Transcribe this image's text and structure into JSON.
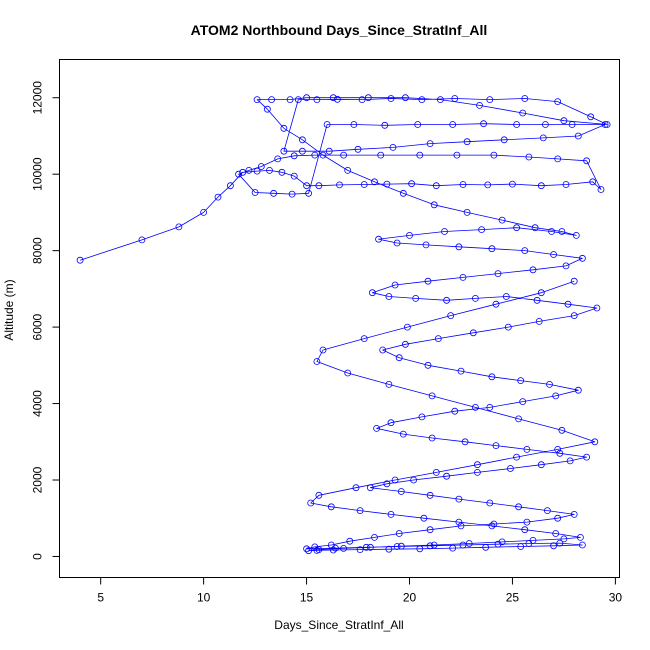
{
  "chart_data": {
    "type": "line",
    "title": "ATOM2 Northbound Days_Since_StratInf_All",
    "xlabel": "Days_Since_StratInf_All",
    "ylabel": "Altitude (m)",
    "xlim": [
      3,
      30.2
    ],
    "ylim": [
      -550,
      13000
    ],
    "xticks": [
      5,
      10,
      15,
      20,
      25,
      30
    ],
    "yticks": [
      0,
      2000,
      4000,
      6000,
      8000,
      10000,
      12000
    ],
    "grid": false,
    "marker": "open-circle",
    "color": "#0000ff",
    "series": [
      {
        "x": [
          4.0,
          7.0,
          8.8,
          10.0,
          10.7,
          11.3,
          11.9,
          12.6,
          13.2,
          13.8,
          14.4,
          15.0,
          15.6,
          16.6,
          17.8,
          18.9,
          20.1,
          21.3,
          22.6,
          23.8,
          25.0,
          26.4,
          27.6,
          28.9,
          29.3,
          28.6,
          27.2,
          25.8,
          24.1,
          22.3,
          20.5,
          18.6,
          16.8,
          15.4,
          14.4,
          13.6,
          12.8,
          12.2,
          11.7,
          12.5,
          13.4,
          14.3,
          15.1,
          16.0,
          17.3,
          18.8,
          20.4,
          22.1,
          23.6,
          25.2,
          26.6,
          27.9,
          29.5,
          28.2,
          26.5,
          24.6,
          22.8,
          21.0,
          19.2,
          17.5,
          16.1,
          14.8,
          13.9,
          14.6,
          15.5,
          16.5,
          17.7,
          19.1,
          20.6,
          22.2,
          23.9,
          25.6,
          27.2,
          28.8,
          29.6,
          27.5,
          25.5,
          23.4,
          21.5,
          19.8,
          18.0,
          16.3,
          15.0,
          14.2,
          13.3,
          12.6,
          13.1,
          13.9,
          14.8,
          15.8,
          17.0,
          18.3,
          19.7,
          21.2,
          22.8,
          24.5,
          26.1,
          27.4,
          28.1,
          26.9,
          25.2,
          23.5,
          21.7,
          20.0,
          18.5,
          19.4,
          20.8,
          22.4,
          24.0,
          25.6,
          27.0,
          28.4,
          27.6,
          26.0,
          24.3,
          22.6,
          20.9,
          19.3,
          18.2,
          19.0,
          20.3,
          21.8,
          23.2,
          24.7,
          26.2,
          27.7,
          29.1,
          28.0,
          26.3,
          24.8,
          23.1,
          21.4,
          19.8,
          18.7,
          19.5,
          20.9,
          22.5,
          24.0,
          25.4,
          26.8,
          28.2,
          27.1,
          25.5,
          23.9,
          22.2,
          20.6,
          19.1,
          18.4,
          19.7,
          21.1,
          22.7,
          24.2,
          25.7,
          27.3,
          28.6,
          27.8,
          26.4,
          24.9,
          23.3,
          21.8,
          20.2,
          18.9,
          18.1,
          19.6,
          21.0,
          22.4,
          23.9,
          25.3,
          26.7,
          28.0,
          27.2,
          25.7,
          24.1,
          22.5,
          21.0,
          19.5,
          18.3,
          17.1,
          16.2,
          15.4,
          15.0,
          16.4,
          17.9,
          19.4,
          21.0,
          22.6,
          24.3,
          25.8,
          27.3,
          28.4,
          27.0,
          25.4,
          23.7,
          22.1,
          20.5,
          19.0,
          17.6,
          16.3,
          15.5,
          15.1,
          15.6,
          16.8,
          18.1,
          19.6,
          21.2,
          22.9,
          24.5,
          26.0,
          27.5,
          28.3,
          27.1,
          25.6,
          24.0,
          22.4,
          20.7,
          19.1,
          17.6,
          16.2,
          15.2,
          15.6,
          17.4,
          19.3,
          21.3,
          23.3,
          25.2,
          27.2,
          29.0,
          27.4,
          25.3,
          23.2,
          21.1,
          19.0,
          17.0,
          15.5,
          15.8,
          17.8,
          19.9,
          22.0,
          24.2,
          26.4,
          28.0
        ],
        "y": [
          7750,
          8280,
          8620,
          9000,
          9400,
          9700,
          10050,
          10080,
          10100,
          10050,
          9950,
          9700,
          9700,
          9720,
          9730,
          9740,
          9750,
          9700,
          9730,
          9720,
          9740,
          9700,
          9730,
          9800,
          9600,
          10350,
          10400,
          10450,
          10500,
          10500,
          10500,
          10500,
          10500,
          10500,
          10480,
          10400,
          10200,
          10100,
          10000,
          9520,
          9500,
          9480,
          9500,
          11300,
          11300,
          11280,
          11300,
          11300,
          11320,
          11300,
          11300,
          11300,
          11300,
          11000,
          10950,
          10900,
          10850,
          10800,
          10700,
          10650,
          10600,
          10600,
          10600,
          11950,
          11950,
          11960,
          11950,
          11980,
          11950,
          11980,
          11950,
          11980,
          11900,
          11500,
          11300,
          11400,
          11600,
          11800,
          11950,
          12000,
          12000,
          12000,
          12000,
          11950,
          11950,
          11950,
          11700,
          11200,
          10900,
          10500,
          10100,
          9800,
          9500,
          9200,
          9000,
          8800,
          8600,
          8500,
          8400,
          8500,
          8600,
          8550,
          8500,
          8400,
          8300,
          8200,
          8150,
          8100,
          8050,
          8000,
          7900,
          7800,
          7600,
          7500,
          7400,
          7300,
          7200,
          7100,
          6900,
          6800,
          6750,
          6700,
          6750,
          6800,
          6700,
          6600,
          6500,
          6300,
          6150,
          6000,
          5850,
          5700,
          5550,
          5400,
          5200,
          5000,
          4850,
          4700,
          4600,
          4500,
          4350,
          4200,
          4050,
          3900,
          3800,
          3650,
          3500,
          3350,
          3200,
          3100,
          3000,
          2900,
          2800,
          2700,
          2600,
          2500,
          2400,
          2300,
          2200,
          2100,
          2000,
          1900,
          1800,
          1700,
          1600,
          1500,
          1400,
          1300,
          1200,
          1100,
          1000,
          900,
          850,
          800,
          700,
          600,
          500,
          400,
          300,
          250,
          200,
          220,
          240,
          260,
          280,
          300,
          320,
          340,
          350,
          300,
          280,
          260,
          240,
          220,
          200,
          190,
          180,
          170,
          160,
          150,
          180,
          210,
          240,
          270,
          300,
          340,
          380,
          420,
          460,
          500,
          600,
          700,
          800,
          900,
          1000,
          1100,
          1200,
          1300,
          1400,
          1600,
          1800,
          2000,
          2200,
          2400,
          2600,
          2800,
          3000,
          3300,
          3600,
          3900,
          4200,
          4500,
          4800,
          5100,
          5400,
          5700,
          6000,
          6300,
          6600,
          6900,
          7200
        ]
      }
    ]
  }
}
